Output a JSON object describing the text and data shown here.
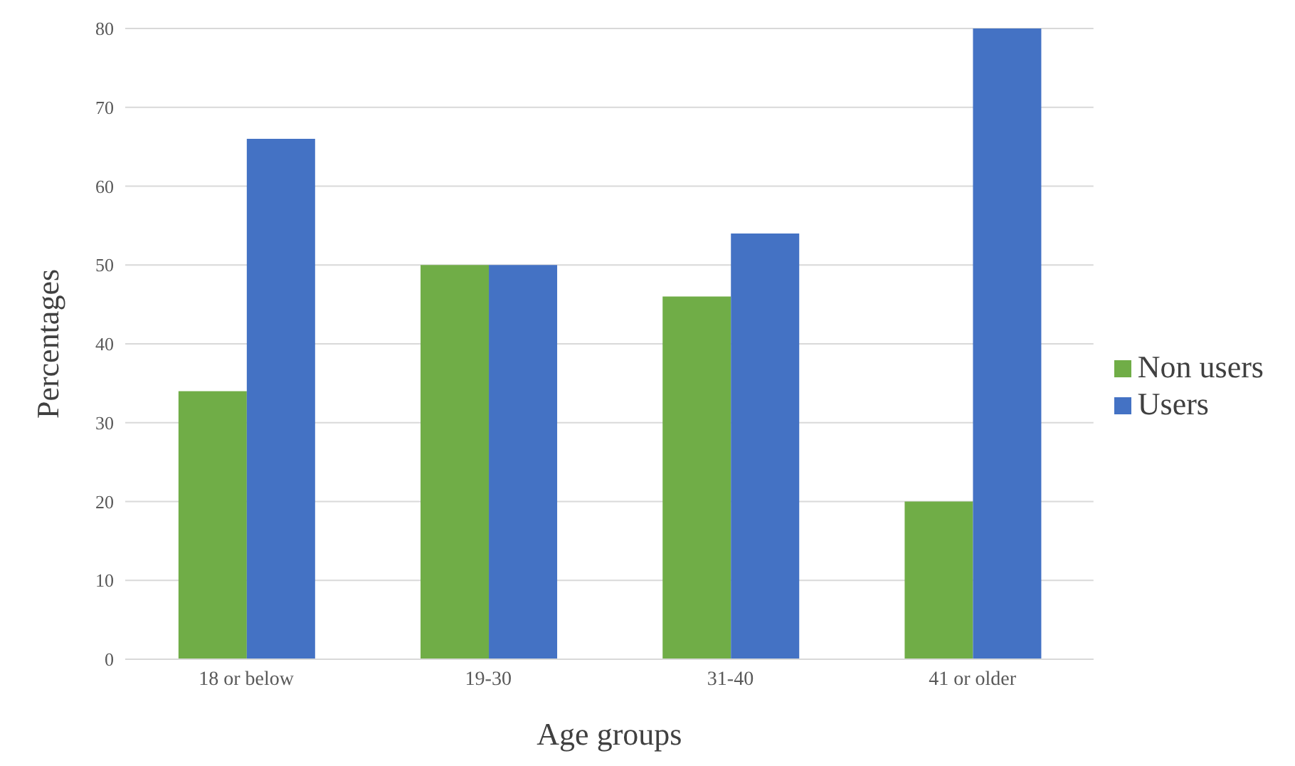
{
  "chart_data": {
    "type": "bar",
    "xlabel": "Age groups",
    "ylabel": "Percentages",
    "categories": [
      "18 or below",
      "19-30",
      "31-40",
      "41 or older"
    ],
    "series": [
      {
        "name": "Non users",
        "color": "#70ad47",
        "values": [
          34,
          50,
          46,
          20
        ]
      },
      {
        "name": "Users",
        "color": "#4472c4",
        "values": [
          66,
          50,
          54,
          80
        ]
      }
    ],
    "ylim": [
      0,
      80
    ],
    "yticks": [
      0,
      10,
      20,
      30,
      40,
      50,
      60,
      70,
      80
    ],
    "grid": "y",
    "legend": "right"
  }
}
